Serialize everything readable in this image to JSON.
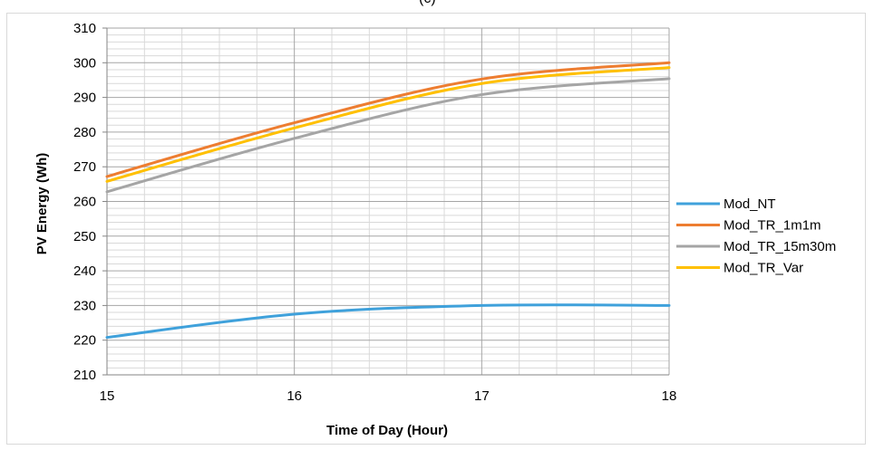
{
  "top_label": "(c)",
  "colors": {
    "Mod_NT": "#3fa1db",
    "Mod_TR_1m1m": "#ed7d31",
    "Mod_TR_15m30m": "#a5a5a5",
    "Mod_TR_Var": "#ffc000",
    "major_grid": "#a6a6a6",
    "minor_grid": "#d9d9d9"
  },
  "chart_data": {
    "type": "line",
    "title": "",
    "xlabel": "Time of Day (Hour)",
    "ylabel": "PV Energy (Wh)",
    "x": [
      15,
      16,
      17,
      18
    ],
    "xlim": [
      15,
      18
    ],
    "ylim": [
      210,
      310
    ],
    "xticks": [
      "15",
      "16",
      "17",
      "18"
    ],
    "yticks": [
      "210",
      "220",
      "230",
      "240",
      "250",
      "260",
      "270",
      "280",
      "290",
      "300",
      "310"
    ],
    "grid": true,
    "legend_position": "right",
    "series": [
      {
        "name": "Mod_NT",
        "values": [
          220.8,
          227.5,
          230.0,
          230.0
        ]
      },
      {
        "name": "Mod_TR_1m1m",
        "values": [
          267.2,
          282.7,
          295.3,
          300.0
        ]
      },
      {
        "name": "Mod_TR_15m30m",
        "values": [
          262.8,
          278.2,
          290.8,
          295.4
        ]
      },
      {
        "name": "Mod_TR_Var",
        "values": [
          265.8,
          281.2,
          294.0,
          298.6
        ]
      }
    ]
  }
}
